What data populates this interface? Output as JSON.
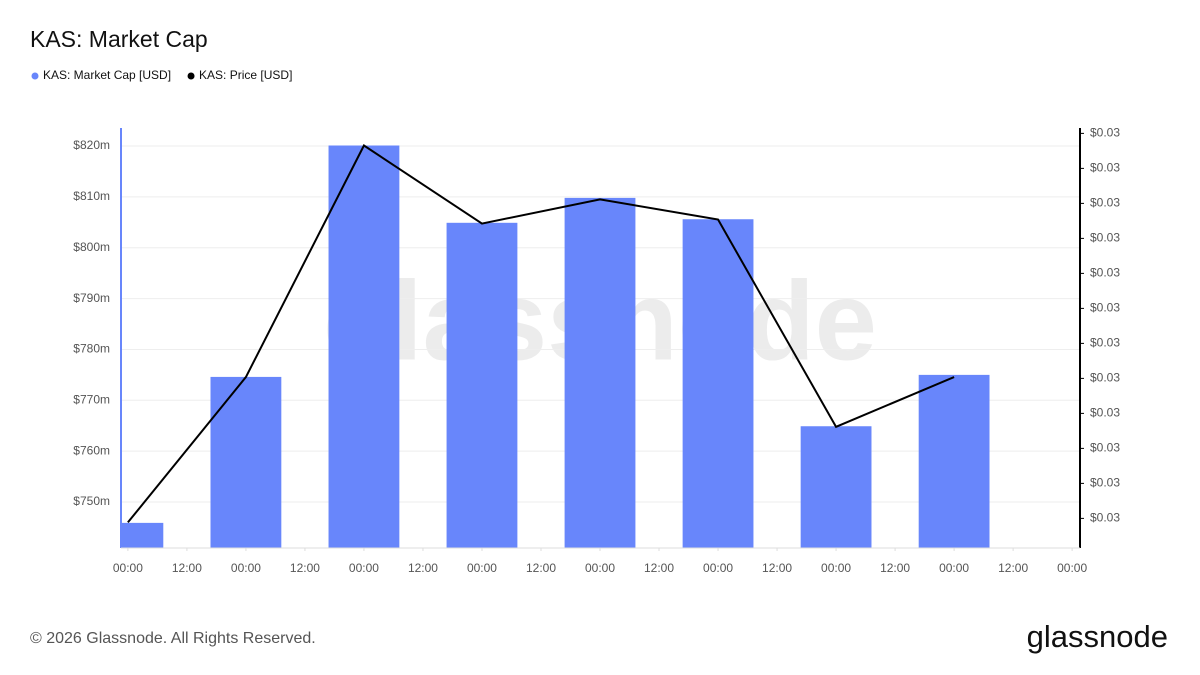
{
  "chart_data": {
    "type": "bar",
    "title": "KAS: Market Cap",
    "x": [
      0,
      24,
      48,
      72,
      96,
      120,
      144,
      168
    ],
    "xlim": [
      -1.4,
      193.6
    ],
    "xticks": [
      {
        "value": 0,
        "label": "00:00"
      },
      {
        "value": 12,
        "label": "12:00"
      },
      {
        "value": 24,
        "label": "00:00"
      },
      {
        "value": 36,
        "label": "12:00"
      },
      {
        "value": 48,
        "label": "00:00"
      },
      {
        "value": 60,
        "label": "12:00"
      },
      {
        "value": 72,
        "label": "00:00"
      },
      {
        "value": 84,
        "label": "12:00"
      },
      {
        "value": 96,
        "label": "00:00"
      },
      {
        "value": 108,
        "label": "12:00"
      },
      {
        "value": 120,
        "label": "00:00"
      },
      {
        "value": 132,
        "label": "12:00"
      },
      {
        "value": 144,
        "label": "00:00"
      },
      {
        "value": 156,
        "label": "12:00"
      },
      {
        "value": 168,
        "label": "00:00"
      },
      {
        "value": 180,
        "label": "12:00"
      },
      {
        "value": 192,
        "label": "00:00"
      }
    ],
    "ylim": [
      740.96,
      823.54
    ],
    "yticks": [
      {
        "value": 750,
        "label": "$750m"
      },
      {
        "value": 760,
        "label": "$760m"
      },
      {
        "value": 770,
        "label": "$770m"
      },
      {
        "value": 780,
        "label": "$780m"
      },
      {
        "value": 790,
        "label": "$790m"
      },
      {
        "value": 800,
        "label": "$800m"
      },
      {
        "value": 810,
        "label": "$810m"
      },
      {
        "value": 820,
        "label": "$820m"
      }
    ],
    "y2lim": [
      0.02774,
      0.03086
    ],
    "y2ticks": [
      {
        "value": 0.02796,
        "label": "$0.03"
      },
      {
        "value": 0.02822,
        "label": "$0.03"
      },
      {
        "value": 0.02848,
        "label": "$0.03"
      },
      {
        "value": 0.02874,
        "label": "$0.03"
      },
      {
        "value": 0.029,
        "label": "$0.03"
      },
      {
        "value": 0.02926,
        "label": "$0.03"
      },
      {
        "value": 0.02952,
        "label": "$0.03"
      },
      {
        "value": 0.02978,
        "label": "$0.03"
      },
      {
        "value": 0.03004,
        "label": "$0.03"
      },
      {
        "value": 0.0303,
        "label": "$0.03"
      },
      {
        "value": 0.03056,
        "label": "$0.03"
      },
      {
        "value": 0.03082,
        "label": "$0.03"
      }
    ],
    "grid": true,
    "series": [
      {
        "name": "KAS: Market Cap [USD]",
        "color": "#6886fb",
        "type": "bar",
        "values": [
          745.9,
          774.6,
          820.1,
          804.9,
          809.8,
          805.6,
          764.9,
          775.0
        ]
      },
      {
        "name": "KAS: Price [USD]",
        "color": "#000000",
        "type": "line",
        "axis": "y2",
        "values": [
          0.02793,
          0.02901,
          0.03073,
          0.03015,
          0.03033,
          0.03018,
          0.02864,
          0.02901
        ]
      }
    ]
  },
  "watermark": "glassnode",
  "footer": {
    "copyright": "© 2026 Glassnode. All Rights Reserved.",
    "logo": "glassnode"
  }
}
